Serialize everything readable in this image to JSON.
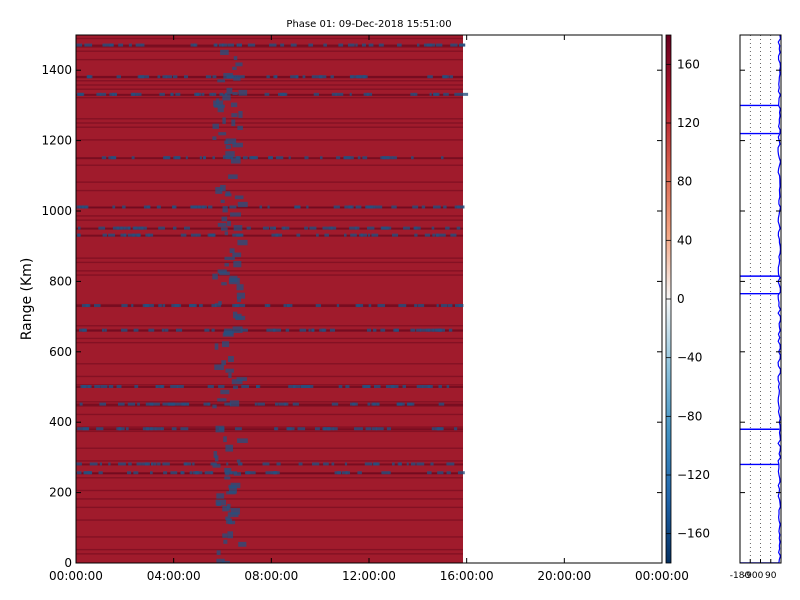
{
  "chart_data": [
    {
      "type": "heatmap",
      "title": "Phase 01: 09-Dec-2018 15:51:00",
      "xlabel": "",
      "ylabel": "Range (Km)",
      "xlim": [
        "00:00:00",
        "24:00:00"
      ],
      "x_tick_labels": [
        "00:00:00",
        "04:00:00",
        "08:00:00",
        "12:00:00",
        "16:00:00",
        "20:00:00",
        "00:00:00"
      ],
      "ylim": [
        0,
        1500
      ],
      "y_ticks": [
        0,
        200,
        400,
        600,
        800,
        1000,
        1200,
        1400
      ],
      "data_extent_x": [
        "00:00:00",
        "15:51:00"
      ],
      "grid": false,
      "dominant_value": 160,
      "secondary_value": -140,
      "anomaly_columns": [
        {
          "from": "05:35:00",
          "to": "06:40:00"
        }
      ],
      "anomaly_ranges_km": [
        1470,
        1380,
        1330,
        1150,
        1010,
        950,
        930,
        730,
        660,
        500,
        450,
        380,
        280,
        255
      ]
    },
    {
      "type": "line",
      "title": "",
      "xlim": [
        -180,
        180
      ],
      "x_tick_labels": [
        "-180",
        "-90",
        "0",
        "90"
      ],
      "ylim": [
        0,
        1500
      ],
      "y_ticks": [
        0,
        200,
        400,
        600,
        800,
        1000,
        1200,
        1400
      ],
      "grid": true,
      "baseline_phase": 165,
      "excursions": [
        {
          "range": 1300,
          "phase": -180
        },
        {
          "range": 1220,
          "phase": -180
        },
        {
          "range": 815,
          "phase": -180
        },
        {
          "range": 765,
          "phase": -180
        },
        {
          "range": 380,
          "phase": -180
        },
        {
          "range": 280,
          "phase": -180
        },
        {
          "range": 0,
          "phase": -180
        }
      ]
    }
  ],
  "colorbar": {
    "min": -180,
    "max": 180,
    "tick_labels": [
      "160",
      "120",
      "80",
      "40",
      "0",
      "−40",
      "−80",
      "−120",
      "−160"
    ],
    "tick_values": [
      160,
      120,
      80,
      40,
      0,
      -40,
      -80,
      -120,
      -160
    ],
    "colors": {
      "high": "#67001f",
      "mid": "#f7f7f7",
      "low": "#053061"
    }
  },
  "colors": {
    "heat_main": "#a01b2c",
    "heat_stripe_dark": "#6e0a1e",
    "heat_anomaly": "#25507f",
    "profile_line": "#0000ff"
  }
}
